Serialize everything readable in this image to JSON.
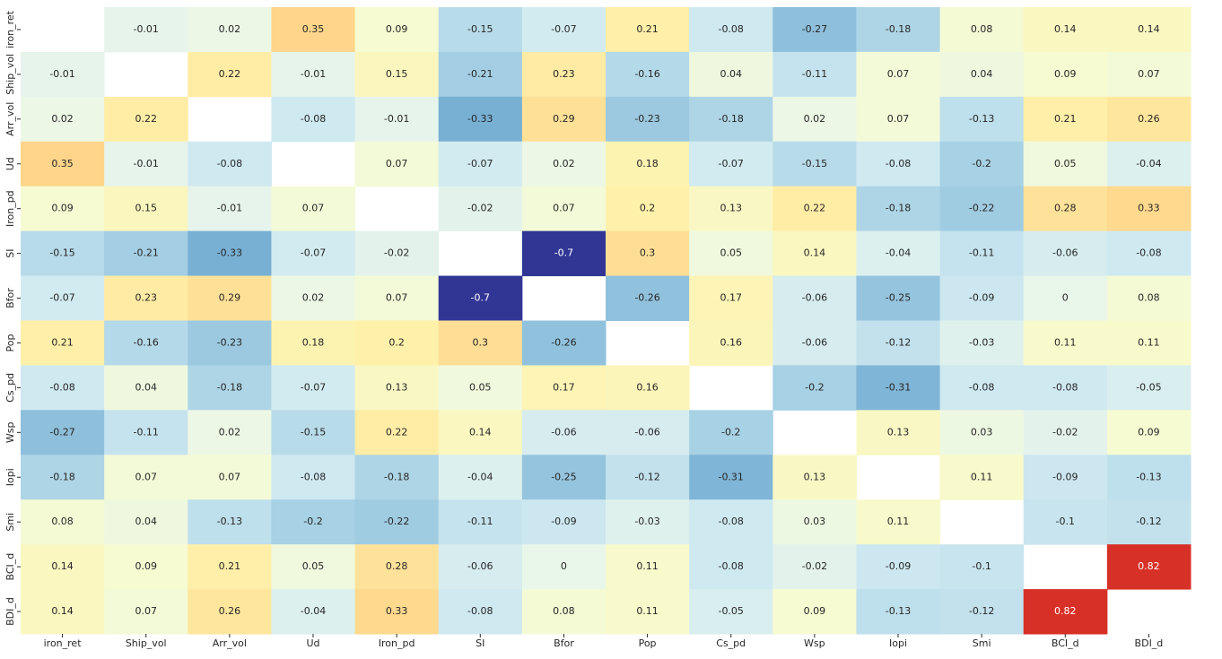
{
  "chart_data": {
    "type": "heatmap",
    "categories": [
      "iron_ret",
      "Ship_vol",
      "Arr_vol",
      "Ud",
      "Iron_pd",
      "SI",
      "Bfor",
      "Pop",
      "Cs_pd",
      "Wsp",
      "Iopi",
      "Smi",
      "BCI_d",
      "BDI_d"
    ],
    "z": [
      [
        null,
        -0.01,
        0.02,
        0.35,
        0.09,
        -0.15,
        -0.07,
        0.21,
        -0.08,
        -0.27,
        -0.18,
        0.08,
        0.14,
        0.14
      ],
      [
        -0.01,
        null,
        0.22,
        -0.01,
        0.15,
        -0.21,
        0.23,
        -0.16,
        0.04,
        -0.11,
        0.07,
        0.04,
        0.09,
        0.07
      ],
      [
        0.02,
        0.22,
        null,
        -0.08,
        -0.01,
        -0.33,
        0.29,
        -0.23,
        -0.18,
        0.02,
        0.07,
        -0.13,
        0.21,
        0.26
      ],
      [
        0.35,
        -0.01,
        -0.08,
        null,
        0.07,
        -0.07,
        0.02,
        0.18,
        -0.07,
        -0.15,
        -0.08,
        -0.2,
        0.05,
        -0.04
      ],
      [
        0.09,
        0.15,
        -0.01,
        0.07,
        null,
        -0.02,
        0.07,
        0.2,
        0.13,
        0.22,
        -0.18,
        -0.22,
        0.28,
        0.33
      ],
      [
        -0.15,
        -0.21,
        -0.33,
        -0.07,
        -0.02,
        null,
        -0.7,
        0.3,
        0.05,
        0.14,
        -0.04,
        -0.11,
        -0.06,
        -0.08
      ],
      [
        -0.07,
        0.23,
        0.29,
        0.02,
        0.07,
        -0.7,
        null,
        -0.26,
        0.17,
        -0.06,
        -0.25,
        -0.09,
        0,
        0.08
      ],
      [
        0.21,
        -0.16,
        -0.23,
        0.18,
        0.2,
        0.3,
        -0.26,
        null,
        0.16,
        -0.06,
        -0.12,
        -0.03,
        0.11,
        0.11
      ],
      [
        -0.08,
        0.04,
        -0.18,
        -0.07,
        0.13,
        0.05,
        0.17,
        0.16,
        null,
        -0.2,
        -0.31,
        -0.08,
        -0.08,
        -0.05
      ],
      [
        -0.27,
        -0.11,
        0.02,
        -0.15,
        0.22,
        0.14,
        -0.06,
        -0.06,
        -0.2,
        null,
        0.13,
        0.03,
        -0.02,
        0.09
      ],
      [
        -0.18,
        0.07,
        0.07,
        -0.08,
        -0.18,
        -0.04,
        -0.25,
        -0.12,
        -0.31,
        0.13,
        null,
        0.11,
        -0.09,
        -0.13
      ],
      [
        0.08,
        0.04,
        -0.13,
        -0.2,
        -0.22,
        -0.11,
        -0.09,
        -0.03,
        -0.08,
        0.03,
        0.11,
        null,
        -0.1,
        -0.12
      ],
      [
        0.14,
        0.09,
        0.21,
        0.05,
        0.28,
        -0.06,
        0,
        0.11,
        -0.08,
        -0.02,
        -0.09,
        -0.1,
        null,
        0.82
      ],
      [
        0.14,
        0.07,
        0.26,
        -0.04,
        0.33,
        -0.08,
        0.08,
        0.11,
        -0.05,
        0.09,
        -0.13,
        -0.12,
        0.82,
        null
      ]
    ],
    "colorscale": [
      [
        -0.7,
        "#313695"
      ],
      [
        -0.33,
        "#78b0d4"
      ],
      [
        -0.2,
        "#a7d1e4"
      ],
      [
        -0.08,
        "#cfe9f1"
      ],
      [
        0,
        "#e9f6ea"
      ],
      [
        0.1,
        "#f7fbcf"
      ],
      [
        0.2,
        "#fff1aa"
      ],
      [
        0.35,
        "#fed58a"
      ],
      [
        0.82,
        "#d73027"
      ]
    ]
  }
}
